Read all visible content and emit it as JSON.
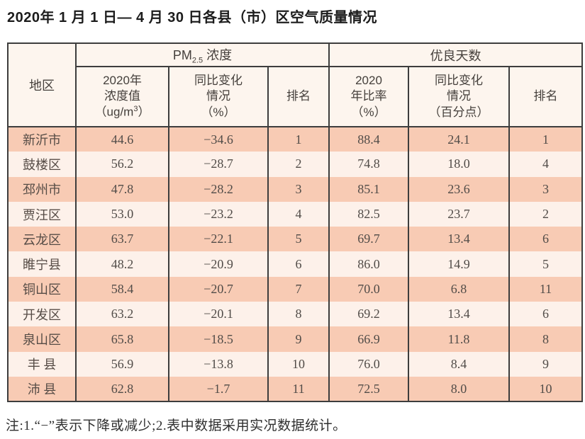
{
  "page": {
    "title": "2020年 1 月 1 日— 4 月 30 日各县（市）区空气质量情况",
    "note": "注:1.“−”表示下降或减少;2.表中数据采用实况数据统计。"
  },
  "colors": {
    "row_odd": "#f8cbb4",
    "row_even": "#fdf1ea",
    "header_bg": "#fdf5ee",
    "border": "#3d3d3d"
  },
  "table": {
    "corner_header": "地区",
    "group_pm": {
      "prefix": "PM",
      "sub": "2.5",
      "suffix": " 浓度"
    },
    "group_good": "优良天数",
    "sub_headers": {
      "pm_value": {
        "lines": "2020年\n浓度值",
        "paren_prefix": "（ug/m",
        "sup": "3",
        "paren_suffix": "）"
      },
      "pm_change": "同比变化\n情况\n（%）",
      "pm_rank": "排名",
      "good_rate": "2020\n年比率\n（%）",
      "good_change": "同比变化\n情况\n（百分点）",
      "good_rank": "排名"
    },
    "row_keys": [
      "region",
      "pm_value",
      "pm_change",
      "pm_rank",
      "good_rate",
      "good_change",
      "good_rank"
    ],
    "rows": [
      {
        "region": "新沂市",
        "pm_value": "44.6",
        "pm_change": "−34.6",
        "pm_rank": "1",
        "good_rate": "88.4",
        "good_change": "24.1",
        "good_rank": "1"
      },
      {
        "region": "鼓楼区",
        "pm_value": "56.2",
        "pm_change": "−28.7",
        "pm_rank": "2",
        "good_rate": "74.8",
        "good_change": "18.0",
        "good_rank": "4"
      },
      {
        "region": "邳州市",
        "pm_value": "47.8",
        "pm_change": "−28.2",
        "pm_rank": "3",
        "good_rate": "85.1",
        "good_change": "23.6",
        "good_rank": "3"
      },
      {
        "region": "贾汪区",
        "pm_value": "53.0",
        "pm_change": "−23.2",
        "pm_rank": "4",
        "good_rate": "82.5",
        "good_change": "23.7",
        "good_rank": "2"
      },
      {
        "region": "云龙区",
        "pm_value": "63.7",
        "pm_change": "−22.1",
        "pm_rank": "5",
        "good_rate": "69.7",
        "good_change": "13.4",
        "good_rank": "6"
      },
      {
        "region": "睢宁县",
        "pm_value": "48.2",
        "pm_change": "−20.9",
        "pm_rank": "6",
        "good_rate": "86.0",
        "good_change": "14.9",
        "good_rank": "5"
      },
      {
        "region": "铜山区",
        "pm_value": "58.4",
        "pm_change": "−20.7",
        "pm_rank": "7",
        "good_rate": "70.0",
        "good_change": "6.8",
        "good_rank": "11"
      },
      {
        "region": "开发区",
        "pm_value": "63.2",
        "pm_change": "−20.1",
        "pm_rank": "8",
        "good_rate": "69.2",
        "good_change": "13.4",
        "good_rank": "6"
      },
      {
        "region": "泉山区",
        "pm_value": "65.8",
        "pm_change": "−18.5",
        "pm_rank": "9",
        "good_rate": "66.9",
        "good_change": "11.8",
        "good_rank": "8"
      },
      {
        "region": "丰 县",
        "pm_value": "56.9",
        "pm_change": "−13.8",
        "pm_rank": "10",
        "good_rate": "76.0",
        "good_change": "8.4",
        "good_rank": "9"
      },
      {
        "region": "沛 县",
        "pm_value": "62.8",
        "pm_change": "−1.7",
        "pm_rank": "11",
        "good_rate": "72.5",
        "good_change": "8.0",
        "good_rank": "10"
      }
    ]
  }
}
